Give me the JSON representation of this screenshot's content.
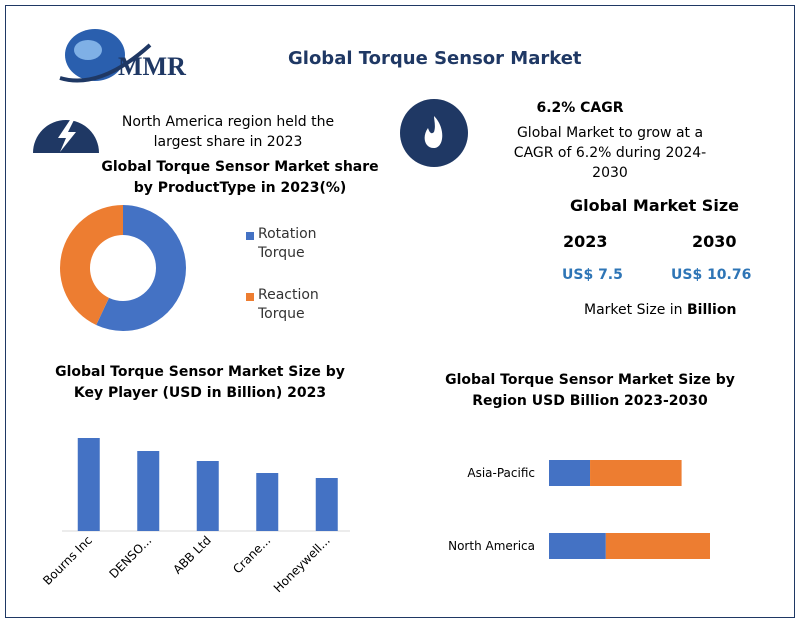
{
  "header": {
    "logo": "MMR",
    "title": "Global Torque Sensor Market"
  },
  "highlights": [
    {
      "text": "North America region held the largest share in 2023"
    },
    {
      "heading": "6.2% CAGR",
      "text": "Global Market to grow at a CAGR of 6.2% during 2024-2030"
    }
  ],
  "market_size": {
    "title": "Global Market Size",
    "years": [
      "2023",
      "2030"
    ],
    "values": [
      "US$ 7.5",
      "US$ 10.76"
    ],
    "note": "Market Size in",
    "unit": "Billion"
  },
  "chart_data": [
    {
      "type": "donut",
      "title": "Global Torque Sensor Market share by ProductType in 2023(%)",
      "categories": [
        "Rotation Torque",
        "Reaction Torque"
      ],
      "values": [
        57,
        43
      ],
      "colors": [
        "#4472c4",
        "#ed7d31"
      ]
    },
    {
      "type": "bar",
      "title": "Global Torque Sensor Market Size by Key Player (USD in Billion) 2023",
      "categories": [
        "Bourns Inc",
        "DENSO...",
        "ABB Ltd",
        "Crane...",
        "Honeywell..."
      ],
      "values": [
        0.93,
        0.8,
        0.7,
        0.58,
        0.53
      ],
      "color": "#4472c4"
    },
    {
      "type": "hbar-stacked",
      "title": "Global Torque Sensor Market Size by Region USD Billion 2023-2030",
      "categories": [
        "Asia-Pacific",
        "North America"
      ],
      "series": [
        {
          "color": "#4472c4",
          "values": [
            1.3,
            1.8
          ]
        },
        {
          "color": "#ed7d31",
          "values": [
            2.9,
            3.3
          ]
        }
      ]
    }
  ]
}
